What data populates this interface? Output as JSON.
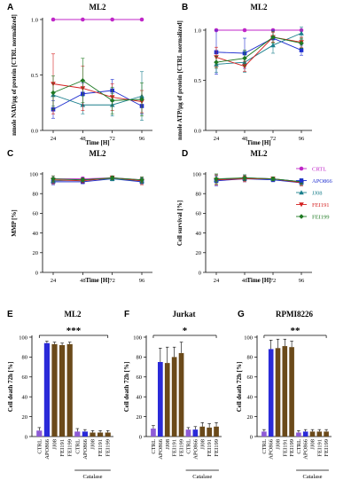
{
  "colors": {
    "CRTL": "#c026c8",
    "APO866": "#1f2fd0",
    "JJ08": "#1a7f8c",
    "FEI191": "#d42020",
    "FEI199": "#1f7a23",
    "ctrl_bar": "#8e5bd6",
    "apo_bar": "#2a2ad8",
    "fei_bar": "#6b4a1a"
  },
  "legend": {
    "items": [
      {
        "label": "CRTL",
        "marker": "circle",
        "color_key": "CRTL"
      },
      {
        "label": "APO866",
        "marker": "square",
        "color_key": "APO866"
      },
      {
        "label": "JJ08",
        "marker": "triangle-up",
        "color_key": "JJ08"
      },
      {
        "label": "FEI191",
        "marker": "triangle-down",
        "color_key": "FEI191"
      },
      {
        "label": "FEI199",
        "marker": "diamond",
        "color_key": "FEI199"
      }
    ]
  },
  "chart_data": [
    {
      "id": "A",
      "panel_label": "A",
      "type": "line",
      "title": "ML2",
      "xlabel": "Time [H]",
      "ylabel": "nmole NAD/µg of protein [CTRL normalized]",
      "x": [
        24,
        48,
        72,
        96
      ],
      "xticks": [
        "24",
        "48",
        "72",
        "96"
      ],
      "ylim": [
        0,
        1.0
      ],
      "yticks": [
        "0.0",
        "0.5",
        "1.0"
      ],
      "series": [
        {
          "name": "CRTL",
          "values": [
            1.0,
            1.0,
            1.0,
            1.0
          ],
          "err": [
            0,
            0,
            0,
            0
          ]
        },
        {
          "name": "APO866",
          "values": [
            0.19,
            0.33,
            0.36,
            0.22
          ],
          "err": [
            0.08,
            0.1,
            0.1,
            0.07
          ]
        },
        {
          "name": "JJ08",
          "values": [
            0.32,
            0.23,
            0.23,
            0.31
          ],
          "err": [
            0.1,
            0.08,
            0.1,
            0.22
          ]
        },
        {
          "name": "FEI191",
          "values": [
            0.42,
            0.38,
            0.3,
            0.26
          ],
          "err": [
            0.27,
            0.2,
            0.12,
            0.1
          ]
        },
        {
          "name": "FEI199",
          "values": [
            0.34,
            0.45,
            0.27,
            0.28
          ],
          "err": [
            0.15,
            0.2,
            0.12,
            0.15
          ]
        }
      ]
    },
    {
      "id": "B",
      "panel_label": "B",
      "type": "line",
      "title": "ML2",
      "xlabel": "Time [H]",
      "ylabel": "nmole ATP/µg of protein [CTRL normalized]",
      "x": [
        24,
        48,
        72,
        96
      ],
      "xticks": [
        "24",
        "48",
        "72",
        "96"
      ],
      "ylim": [
        0,
        1.0
      ],
      "yticks": [
        "0.0",
        "0.5",
        "1.0"
      ],
      "series": [
        {
          "name": "CRTL",
          "values": [
            1.0,
            1.0,
            1.0,
            1.0
          ],
          "err": [
            0,
            0,
            0,
            0
          ]
        },
        {
          "name": "APO866",
          "values": [
            0.78,
            0.77,
            0.92,
            0.8
          ],
          "err": [
            0.22,
            0.15,
            0.08,
            0.05
          ]
        },
        {
          "name": "JJ08",
          "values": [
            0.66,
            0.68,
            0.85,
            0.97
          ],
          "err": [
            0.08,
            0.1,
            0.08,
            0.06
          ]
        },
        {
          "name": "FEI191",
          "values": [
            0.73,
            0.64,
            0.93,
            0.88
          ],
          "err": [
            0.1,
            0.05,
            0.05,
            0.05
          ]
        },
        {
          "name": "FEI199",
          "values": [
            0.68,
            0.72,
            0.93,
            0.87
          ],
          "err": [
            0.06,
            0.08,
            0.06,
            0.05
          ]
        }
      ]
    },
    {
      "id": "C",
      "panel_label": "C",
      "type": "line",
      "title": "ML2",
      "xlabel": "Time [H]",
      "ylabel": "MMP [%]",
      "x": [
        24,
        48,
        72,
        96
      ],
      "xticks": [
        "24",
        "48",
        "72",
        "96"
      ],
      "ylim": [
        0,
        100
      ],
      "yticks": [
        "0",
        "20",
        "40",
        "60",
        "80",
        "100"
      ],
      "series": [
        {
          "name": "CRTL",
          "values": [
            95,
            95,
            96,
            94
          ],
          "err": [
            3,
            2,
            2,
            3
          ]
        },
        {
          "name": "APO866",
          "values": [
            92,
            92,
            95,
            92
          ],
          "err": [
            3,
            2,
            2,
            3
          ]
        },
        {
          "name": "JJ08",
          "values": [
            93,
            94,
            95,
            93
          ],
          "err": [
            3,
            2,
            2,
            3
          ]
        },
        {
          "name": "FEI191",
          "values": [
            94,
            93,
            96,
            93
          ],
          "err": [
            4,
            2,
            2,
            4
          ]
        },
        {
          "name": "FEI199",
          "values": [
            95,
            94,
            96,
            94
          ],
          "err": [
            3,
            2,
            2,
            3
          ]
        }
      ]
    },
    {
      "id": "D",
      "panel_label": "D",
      "type": "line",
      "title": "ML2",
      "xlabel": "Time [H]",
      "ylabel": "Cell survival [%]",
      "x": [
        24,
        48,
        72,
        96
      ],
      "xticks": [
        "24",
        "48",
        "72",
        "96"
      ],
      "ylim": [
        0,
        100
      ],
      "yticks": [
        "0",
        "20",
        "40",
        "60",
        "80",
        "100"
      ],
      "series": [
        {
          "name": "CRTL",
          "values": [
            94,
            96,
            95,
            92
          ],
          "err": [
            5,
            3,
            2,
            3
          ]
        },
        {
          "name": "APO866",
          "values": [
            93,
            95,
            94,
            91
          ],
          "err": [
            5,
            3,
            2,
            3
          ]
        },
        {
          "name": "JJ08",
          "values": [
            94,
            96,
            95,
            92
          ],
          "err": [
            5,
            3,
            2,
            3
          ]
        },
        {
          "name": "FEI191",
          "values": [
            94,
            95,
            95,
            91
          ],
          "err": [
            5,
            3,
            2,
            3
          ]
        },
        {
          "name": "FEI199",
          "values": [
            95,
            96,
            95,
            92
          ],
          "err": [
            5,
            3,
            2,
            3
          ]
        }
      ]
    },
    {
      "id": "E",
      "panel_label": "E",
      "type": "bar",
      "title": "ML2",
      "ylabel": "Cell death 72h [%]",
      "ylim": [
        0,
        100
      ],
      "yticks": [
        "0",
        "20",
        "40",
        "60",
        "80",
        "100"
      ],
      "categories": [
        "CTRL",
        "APO866",
        "JJ08",
        "FEI191",
        "FEI199",
        "CTRL",
        "APO866",
        "JJ08",
        "FEI191",
        "FEI199"
      ],
      "values": [
        6,
        94,
        93,
        92,
        93,
        5,
        5,
        4,
        4,
        4
      ],
      "err": [
        3,
        2,
        2,
        2,
        2,
        3,
        2,
        2,
        2,
        2
      ],
      "bar_colors": [
        "ctrl_bar",
        "apo_bar",
        "fei_bar",
        "fei_bar",
        "fei_bar",
        "ctrl_bar",
        "apo_bar",
        "fei_bar",
        "fei_bar",
        "fei_bar"
      ],
      "group_label": "Catalase",
      "significance": "***"
    },
    {
      "id": "F",
      "panel_label": "F",
      "type": "bar",
      "title": "Jurkat",
      "ylabel": "Cell death 72h [%]",
      "ylim": [
        0,
        100
      ],
      "yticks": [
        "0",
        "20",
        "40",
        "60",
        "80",
        "100"
      ],
      "categories": [
        "CTRL",
        "APO866",
        "JJ08",
        "FEI191",
        "FEI199",
        "CTRL",
        "APO866",
        "JJ08",
        "FEI191",
        "FEI199"
      ],
      "values": [
        8,
        75,
        74,
        80,
        84,
        7,
        7,
        10,
        9,
        10
      ],
      "err": [
        3,
        14,
        16,
        10,
        11,
        2,
        3,
        4,
        4,
        4
      ],
      "bar_colors": [
        "ctrl_bar",
        "apo_bar",
        "fei_bar",
        "fei_bar",
        "fei_bar",
        "ctrl_bar",
        "apo_bar",
        "fei_bar",
        "fei_bar",
        "fei_bar"
      ],
      "group_label": "Catalase",
      "significance": "*"
    },
    {
      "id": "G",
      "panel_label": "G",
      "type": "bar",
      "title": "RPMI8226",
      "ylabel": "Cell death 72h [%]",
      "ylim": [
        0,
        100
      ],
      "yticks": [
        "0",
        "20",
        "40",
        "60",
        "80",
        "100"
      ],
      "categories": [
        "CTRL",
        "APO866",
        "JJ08",
        "FEI191",
        "FEI199",
        "CTRL",
        "APO866",
        "JJ08",
        "FEI191",
        "FEI199"
      ],
      "values": [
        5,
        88,
        89,
        91,
        90,
        4,
        5,
        5,
        5,
        5
      ],
      "err": [
        2,
        9,
        9,
        7,
        6,
        2,
        2,
        2,
        2,
        2
      ],
      "bar_colors": [
        "ctrl_bar",
        "apo_bar",
        "fei_bar",
        "fei_bar",
        "fei_bar",
        "ctrl_bar",
        "apo_bar",
        "fei_bar",
        "fei_bar",
        "fei_bar"
      ],
      "group_label": "Catalase",
      "significance": "**"
    }
  ]
}
